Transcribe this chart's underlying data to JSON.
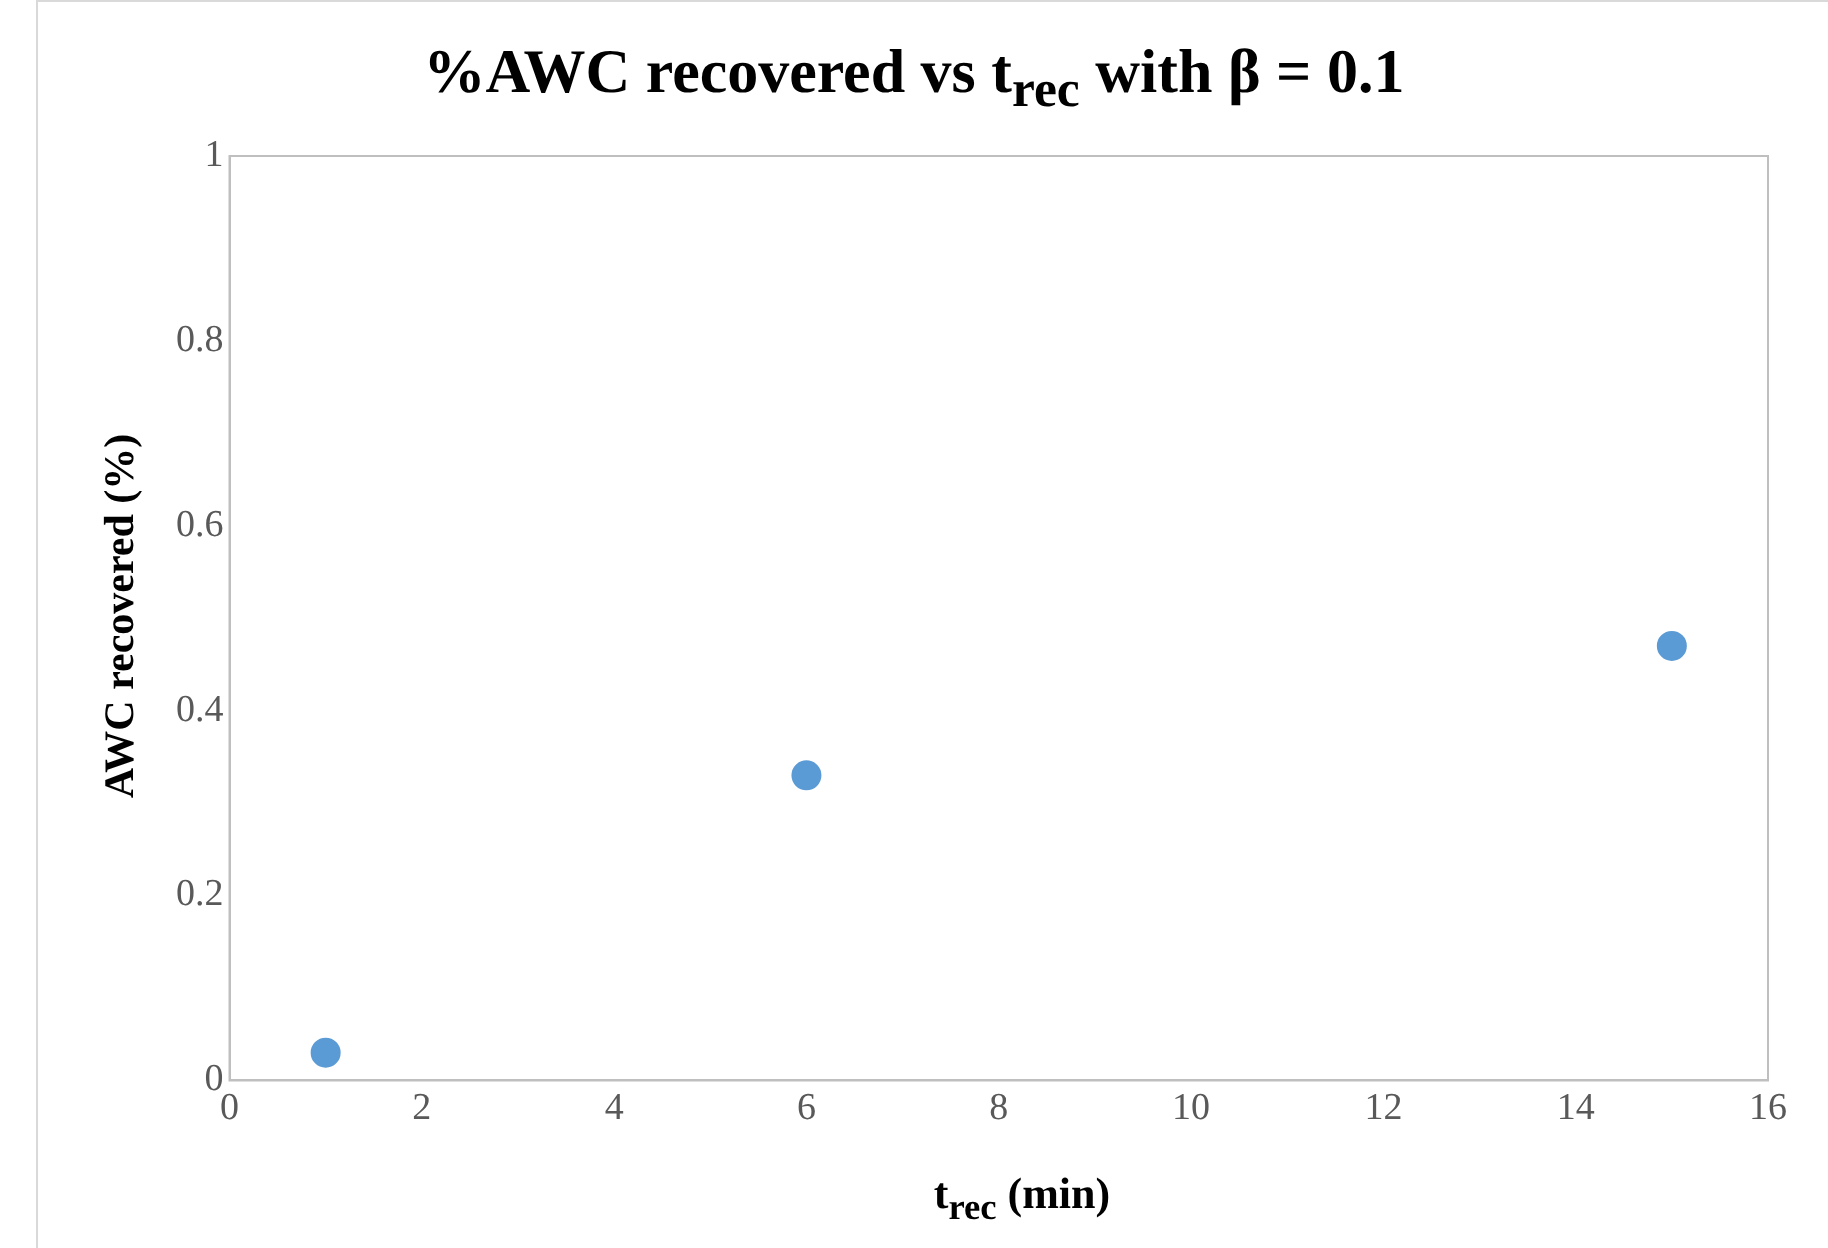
{
  "chart_data": {
    "type": "scatter",
    "title": "%AWC recovered vs t$_{rec}$ with β = 0.1",
    "xlabel": "t$_{rec}$ (min)",
    "ylabel": "AWC recovered (%)",
    "x": [
      1,
      6,
      15
    ],
    "values": [
      0.03,
      0.33,
      0.47
    ],
    "color": "#5b9bd5",
    "marker": "circle",
    "xlim": [
      0,
      16
    ],
    "xticks": [
      0,
      2,
      4,
      6,
      8,
      10,
      12,
      14,
      16
    ],
    "ylim": [
      0,
      1
    ],
    "yticks": [
      0,
      0.2,
      0.4,
      0.6,
      0.8,
      1
    ]
  }
}
